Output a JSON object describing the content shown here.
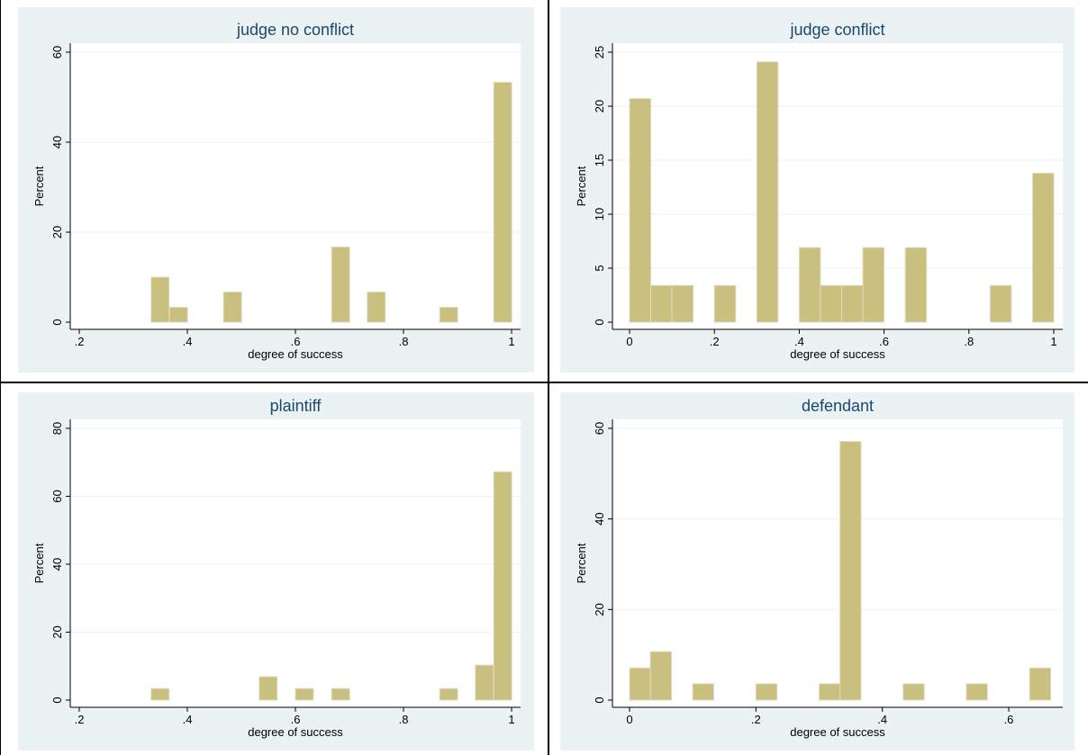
{
  "chart_data": [
    {
      "type": "bar",
      "title": "judge no conflict",
      "xlabel": "degree of success",
      "ylabel": "Percent",
      "xlim": [
        0.2,
        1.0
      ],
      "ylim": [
        0,
        60
      ],
      "xticks": [
        {
          "v": 0.2,
          "label": ".2"
        },
        {
          "v": 0.4,
          "label": ".4"
        },
        {
          "v": 0.6,
          "label": ".6"
        },
        {
          "v": 0.8,
          "label": ".8"
        },
        {
          "v": 1.0,
          "label": "1"
        }
      ],
      "yticks": [
        {
          "v": 0,
          "label": "0"
        },
        {
          "v": 20,
          "label": "20"
        },
        {
          "v": 40,
          "label": "40"
        },
        {
          "v": 60,
          "label": "60"
        }
      ],
      "bin_width": 0.0333,
      "bins": [
        {
          "x": 0.333,
          "value": 10.0
        },
        {
          "x": 0.367,
          "value": 3.3
        },
        {
          "x": 0.467,
          "value": 6.7
        },
        {
          "x": 0.667,
          "value": 16.7
        },
        {
          "x": 0.733,
          "value": 6.7
        },
        {
          "x": 0.867,
          "value": 3.3
        },
        {
          "x": 0.967,
          "value": 53.3
        }
      ]
    },
    {
      "type": "bar",
      "title": "judge conflict",
      "xlabel": "degree of success",
      "ylabel": "Percent",
      "xlim": [
        0,
        1.0
      ],
      "ylim": [
        0,
        25
      ],
      "xticks": [
        {
          "v": 0,
          "label": "0"
        },
        {
          "v": 0.2,
          "label": ".2"
        },
        {
          "v": 0.4,
          "label": ".4"
        },
        {
          "v": 0.6,
          "label": ".6"
        },
        {
          "v": 0.8,
          "label": ".8"
        },
        {
          "v": 1.0,
          "label": "1"
        }
      ],
      "yticks": [
        {
          "v": 0,
          "label": "0"
        },
        {
          "v": 5,
          "label": "5"
        },
        {
          "v": 10,
          "label": "10"
        },
        {
          "v": 15,
          "label": "15"
        },
        {
          "v": 20,
          "label": "20"
        },
        {
          "v": 25,
          "label": "25"
        }
      ],
      "bin_width": 0.05,
      "bins": [
        {
          "x": 0.0,
          "value": 20.7
        },
        {
          "x": 0.05,
          "value": 3.4
        },
        {
          "x": 0.1,
          "value": 3.4
        },
        {
          "x": 0.2,
          "value": 3.4
        },
        {
          "x": 0.3,
          "value": 24.1
        },
        {
          "x": 0.4,
          "value": 6.9
        },
        {
          "x": 0.45,
          "value": 3.4
        },
        {
          "x": 0.5,
          "value": 3.4
        },
        {
          "x": 0.55,
          "value": 6.9
        },
        {
          "x": 0.65,
          "value": 6.9
        },
        {
          "x": 0.85,
          "value": 3.4
        },
        {
          "x": 0.95,
          "value": 13.8
        }
      ]
    },
    {
      "type": "bar",
      "title": "plaintiff",
      "xlabel": "degree of success",
      "ylabel": "Percent",
      "xlim": [
        0.2,
        1.0
      ],
      "ylim": [
        0,
        80
      ],
      "xticks": [
        {
          "v": 0.2,
          "label": ".2"
        },
        {
          "v": 0.4,
          "label": ".4"
        },
        {
          "v": 0.6,
          "label": ".6"
        },
        {
          "v": 0.8,
          "label": ".8"
        },
        {
          "v": 1.0,
          "label": "1"
        }
      ],
      "yticks": [
        {
          "v": 0,
          "label": "0"
        },
        {
          "v": 20,
          "label": "20"
        },
        {
          "v": 40,
          "label": "40"
        },
        {
          "v": 60,
          "label": "60"
        },
        {
          "v": 80,
          "label": "80"
        }
      ],
      "bin_width": 0.0333,
      "bins": [
        {
          "x": 0.333,
          "value": 3.4
        },
        {
          "x": 0.533,
          "value": 6.9
        },
        {
          "x": 0.6,
          "value": 3.4
        },
        {
          "x": 0.667,
          "value": 3.4
        },
        {
          "x": 0.867,
          "value": 3.4
        },
        {
          "x": 0.933,
          "value": 10.3
        },
        {
          "x": 0.967,
          "value": 67.2
        }
      ]
    },
    {
      "type": "bar",
      "title": "defendant",
      "xlabel": "degree of success",
      "ylabel": "Percent",
      "xlim": [
        0,
        0.667
      ],
      "ylim": [
        0,
        60
      ],
      "xticks": [
        {
          "v": 0,
          "label": "0"
        },
        {
          "v": 0.2,
          "label": ".2"
        },
        {
          "v": 0.4,
          "label": ".4"
        },
        {
          "v": 0.6,
          "label": ".6"
        }
      ],
      "yticks": [
        {
          "v": 0,
          "label": "0"
        },
        {
          "v": 20,
          "label": "20"
        },
        {
          "v": 40,
          "label": "40"
        },
        {
          "v": 60,
          "label": "60"
        }
      ],
      "bin_width": 0.0333,
      "bins": [
        {
          "x": 0.0,
          "value": 7.1
        },
        {
          "x": 0.033,
          "value": 10.7
        },
        {
          "x": 0.1,
          "value": 3.6
        },
        {
          "x": 0.2,
          "value": 3.6
        },
        {
          "x": 0.3,
          "value": 3.6
        },
        {
          "x": 0.333,
          "value": 57.1
        },
        {
          "x": 0.433,
          "value": 3.6
        },
        {
          "x": 0.533,
          "value": 3.6
        },
        {
          "x": 0.633,
          "value": 7.1
        }
      ]
    }
  ]
}
